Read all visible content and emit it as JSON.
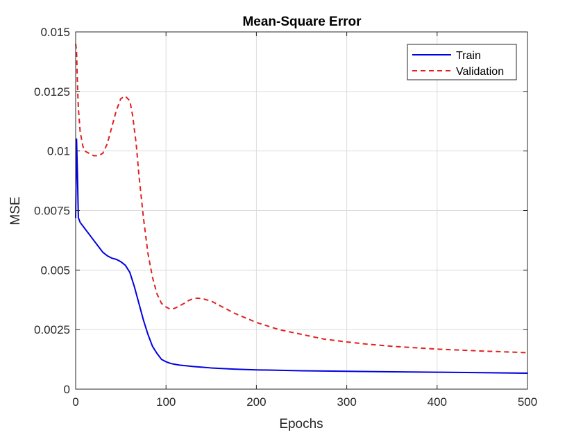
{
  "chart_data": {
    "type": "line",
    "title": "Mean-Square Error",
    "xlabel": "Epochs",
    "ylabel": "MSE",
    "xlim": [
      0,
      500
    ],
    "ylim": [
      0,
      0.015
    ],
    "x_ticks": [
      0,
      100,
      200,
      300,
      400,
      500
    ],
    "x_tick_labels": [
      "0",
      "100",
      "200",
      "300",
      "400",
      "500"
    ],
    "y_ticks": [
      0,
      0.0025,
      0.005,
      0.0075,
      0.01,
      0.0125,
      0.015
    ],
    "y_tick_labels": [
      "0",
      "0.0025",
      "0.005",
      "0.0075",
      "0.01",
      "0.0125",
      "0.015"
    ],
    "grid": true,
    "legend": "top-right",
    "series": [
      {
        "name": "Train",
        "color": "#0000e0",
        "style": "solid",
        "x": [
          0,
          1,
          2,
          3,
          5,
          10,
          15,
          20,
          25,
          30,
          35,
          40,
          45,
          50,
          55,
          60,
          65,
          70,
          75,
          80,
          85,
          90,
          95,
          100,
          105,
          110,
          115,
          120,
          130,
          140,
          150,
          175,
          200,
          250,
          300,
          350,
          400,
          450,
          500
        ],
        "y": [
          0.0072,
          0.0105,
          0.009,
          0.0072,
          0.007,
          0.00675,
          0.0065,
          0.00625,
          0.006,
          0.00575,
          0.0056,
          0.0055,
          0.00545,
          0.00535,
          0.0052,
          0.0049,
          0.0043,
          0.0036,
          0.0029,
          0.0023,
          0.0018,
          0.0015,
          0.00125,
          0.00115,
          0.00108,
          0.00104,
          0.00101,
          0.00099,
          0.00095,
          0.00092,
          0.00089,
          0.00084,
          0.00081,
          0.00077,
          0.00075,
          0.00073,
          0.00071,
          0.00069,
          0.00067
        ]
      },
      {
        "name": "Validation",
        "color": "#e02020",
        "style": "dashed",
        "x": [
          0,
          1,
          2,
          3,
          5,
          8,
          10,
          15,
          20,
          25,
          30,
          35,
          40,
          45,
          50,
          55,
          60,
          63,
          67,
          70,
          75,
          80,
          85,
          90,
          95,
          100,
          105,
          110,
          115,
          120,
          125,
          130,
          135,
          140,
          150,
          160,
          175,
          200,
          225,
          250,
          275,
          300,
          325,
          350,
          375,
          400,
          450,
          500
        ],
        "y": [
          0.0145,
          0.0142,
          0.0128,
          0.0118,
          0.0108,
          0.0102,
          0.01,
          0.0099,
          0.0098,
          0.0098,
          0.0099,
          0.0103,
          0.011,
          0.0117,
          0.0122,
          0.0123,
          0.0121,
          0.0115,
          0.0103,
          0.009,
          0.0072,
          0.0057,
          0.0047,
          0.004,
          0.0036,
          0.00345,
          0.00335,
          0.0034,
          0.0035,
          0.0036,
          0.00372,
          0.0038,
          0.00382,
          0.0038,
          0.0037,
          0.0035,
          0.0032,
          0.0028,
          0.0025,
          0.0023,
          0.0021,
          0.00198,
          0.00188,
          0.0018,
          0.00174,
          0.00168,
          0.0016,
          0.00153
        ]
      }
    ]
  }
}
